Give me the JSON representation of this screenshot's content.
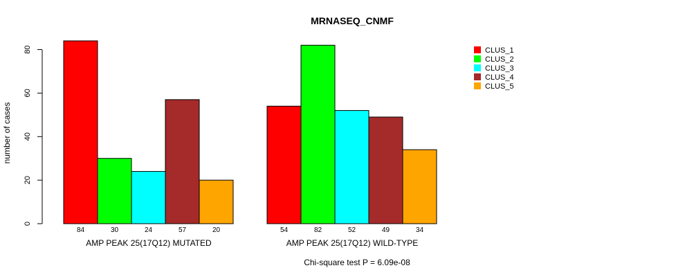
{
  "chart_data": {
    "type": "bar",
    "title": "MRNASEQ_CNMF",
    "ylabel": "number of cases",
    "xlabel": "",
    "ylim": [
      0,
      84
    ],
    "yticks": [
      0,
      20,
      40,
      60,
      80
    ],
    "groups": [
      "AMP PEAK 25(17Q12) MUTATED",
      "AMP PEAK 25(17Q12) WILD-TYPE"
    ],
    "series": [
      {
        "name": "CLUS_1",
        "color": "#ff0000",
        "values": [
          84,
          54
        ]
      },
      {
        "name": "CLUS_2",
        "color": "#00ff00",
        "values": [
          30,
          82
        ]
      },
      {
        "name": "CLUS_3",
        "color": "#00ffff",
        "values": [
          24,
          52
        ]
      },
      {
        "name": "CLUS_4",
        "color": "#a52a2a",
        "values": [
          57,
          49
        ]
      },
      {
        "name": "CLUS_5",
        "color": "#ffa500",
        "values": [
          20,
          34
        ]
      }
    ],
    "legend_position": "top-right",
    "footnote": "Chi-square test P = 6.09e-08"
  }
}
